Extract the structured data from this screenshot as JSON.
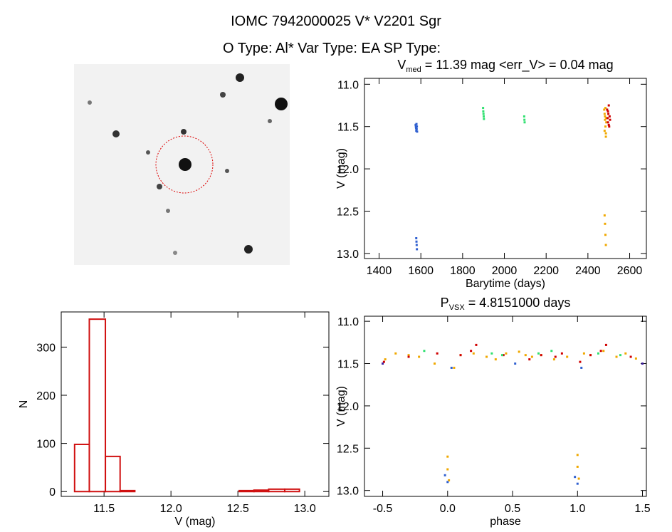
{
  "header": {
    "title": "IOMC 7942000025    V* V2201 Sgr",
    "subtitle": "O Type: Al*   Var Type: EA   SP Type:"
  },
  "chart_data": [
    {
      "type": "scatter",
      "title": [
        "V",
        "med",
        " = 11.39 mag <err_V> = 0.04 mag"
      ],
      "x_label": "Barytime (days)",
      "y_label": "V (mag)",
      "xlim": [
        1330,
        2680
      ],
      "xticks": [
        1400,
        1600,
        1800,
        2000,
        2200,
        2400,
        2600
      ],
      "ylim": [
        13.06,
        10.93
      ],
      "yticks": [
        {
          "value": 11,
          "label": "11.0"
        },
        11.5,
        {
          "value": 12,
          "label": "12.0"
        },
        12.5,
        {
          "value": 13,
          "label": "13.0"
        }
      ],
      "series": [
        {
          "color": "#3060d0",
          "x": [
            1575,
            1576,
            1577,
            1578,
            1579,
            1580,
            1581,
            1582,
            1578,
            1579,
            1580,
            1581
          ],
          "values": [
            11.48,
            11.5,
            11.52,
            11.55,
            11.47,
            11.53,
            11.5,
            11.56,
            12.82,
            12.86,
            12.9,
            12.95
          ]
        },
        {
          "color": "#30e070",
          "x": [
            1898,
            1899,
            1900,
            1901,
            1902,
            2095,
            2096,
            2097
          ],
          "values": [
            11.28,
            11.32,
            11.35,
            11.38,
            11.41,
            11.38,
            11.42,
            11.45
          ]
        },
        {
          "color": "#f0a800",
          "x": [
            2478,
            2480,
            2482,
            2484,
            2486,
            2488,
            2480,
            2482,
            2484,
            2486,
            2488,
            2480,
            2482,
            2484,
            2486
          ],
          "values": [
            11.3,
            11.35,
            11.42,
            11.5,
            11.58,
            11.45,
            11.55,
            11.38,
            11.28,
            11.62,
            11.4,
            12.55,
            12.65,
            12.78,
            12.9
          ]
        },
        {
          "color": "#d00000",
          "x": [
            2492,
            2494,
            2496,
            2498,
            2500,
            2502,
            2504,
            2506,
            2496,
            2500
          ],
          "values": [
            11.3,
            11.4,
            11.45,
            11.35,
            11.25,
            11.5,
            11.38,
            11.42,
            11.32,
            11.48
          ]
        }
      ]
    },
    {
      "type": "scatter",
      "title": [
        "P",
        "VSX",
        " = 4.8151000 days"
      ],
      "x_label": "phase",
      "y_label": "V (mag)",
      "xlim": [
        -0.64,
        1.53
      ],
      "xticks": [
        -0.5,
        {
          "value": 0,
          "label": "0.0"
        },
        0.5,
        {
          "value": 1,
          "label": "1.0"
        },
        1.5
      ],
      "ylim": [
        13.07,
        10.94
      ],
      "yticks": [
        {
          "value": 11,
          "label": "11.0"
        },
        11.5,
        {
          "value": 12,
          "label": "12.0"
        },
        12.5,
        {
          "value": 13,
          "label": "13.0"
        }
      ],
      "series": [
        {
          "color": "#f0a800",
          "x": [
            -0.48,
            -0.4,
            -0.3,
            -0.22,
            -0.1,
            0.05,
            0.1,
            0.2,
            0.3,
            0.37,
            0.45,
            0.55,
            0.6,
            0.65,
            0.72,
            0.82,
            0.92,
            1.05,
            1.1,
            1.2,
            1.3,
            1.37,
            1.45,
            0.0,
            0.0,
            0.01,
            1.0,
            1.0,
            1.01
          ],
          "values": [
            11.45,
            11.38,
            11.4,
            11.42,
            11.5,
            11.55,
            11.4,
            11.38,
            11.42,
            11.45,
            11.38,
            11.36,
            11.4,
            11.42,
            11.4,
            11.45,
            11.42,
            11.38,
            11.4,
            11.35,
            11.42,
            11.38,
            11.44,
            12.6,
            12.75,
            12.88,
            12.58,
            12.72,
            12.86
          ]
        },
        {
          "color": "#d00000",
          "x": [
            -0.49,
            -0.3,
            -0.08,
            0.1,
            0.18,
            0.22,
            0.43,
            0.63,
            0.72,
            0.83,
            0.88,
            1.02,
            1.1,
            1.18,
            1.22,
            1.41
          ],
          "values": [
            11.48,
            11.42,
            11.38,
            11.4,
            11.35,
            11.28,
            11.4,
            11.45,
            11.4,
            11.42,
            11.38,
            11.48,
            11.4,
            11.35,
            11.28,
            11.42
          ]
        },
        {
          "color": "#30e070",
          "x": [
            -0.18,
            0.34,
            0.42,
            0.7,
            0.8,
            1.16,
            1.33
          ],
          "values": [
            11.35,
            11.38,
            11.4,
            11.38,
            11.35,
            11.38,
            11.4
          ]
        },
        {
          "color": "#3060d0",
          "x": [
            -0.02,
            0.0,
            0.03,
            0.52,
            0.98,
            1.0,
            1.03
          ],
          "values": [
            12.82,
            12.9,
            11.55,
            11.5,
            12.84,
            12.92,
            11.55
          ]
        },
        {
          "color": "#4020a0",
          "x": [
            -0.5,
            1.5
          ],
          "values": [
            11.5,
            11.5
          ]
        }
      ]
    },
    {
      "type": "histogram",
      "x_label": "V (mag)",
      "y_label": "N",
      "color": "#d01010",
      "bins": [
        11.28,
        11.39,
        11.51,
        11.62,
        11.73,
        11.84,
        11.95,
        12.06,
        12.17,
        12.28,
        12.39,
        12.51,
        12.62,
        12.73,
        12.85,
        12.96
      ],
      "values": [
        98,
        358,
        73,
        2,
        0,
        0,
        0,
        0,
        0,
        0,
        0,
        2,
        3,
        5,
        5
      ],
      "xlim": [
        11.18,
        13.18
      ],
      "xticks": [
        11.5,
        {
          "value": 12,
          "label": "12.0"
        },
        12.5,
        {
          "value": 13,
          "label": "13.0"
        }
      ],
      "ylim": [
        -10,
        373
      ],
      "yticks": [
        0,
        100,
        200,
        300
      ]
    }
  ]
}
